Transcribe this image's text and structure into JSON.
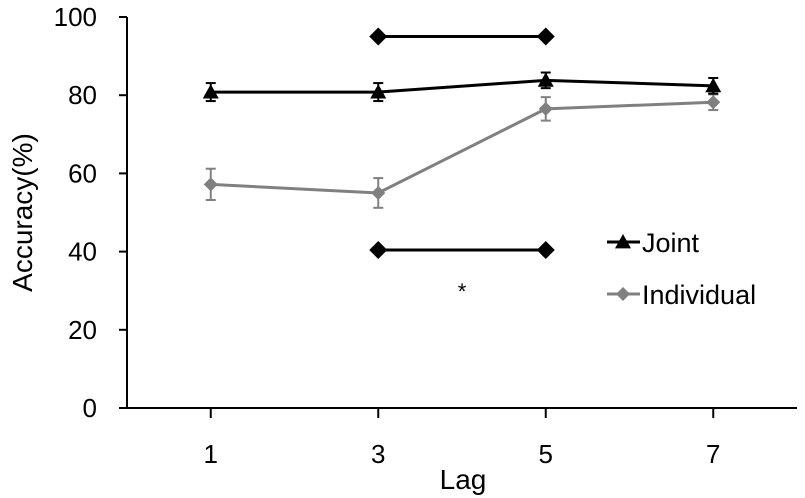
{
  "chart_data": {
    "type": "line",
    "title": "",
    "xlabel": "Lag",
    "ylabel": "Accuracy(%)",
    "x": [
      1,
      3,
      5,
      7
    ],
    "x_ticks": [
      "1",
      "3",
      "5",
      "7"
    ],
    "xlim": [
      0,
      8
    ],
    "y_ticks": [
      "0",
      "20",
      "40",
      "60",
      "80",
      "100"
    ],
    "ylim": [
      0,
      100
    ],
    "grid": false,
    "legend_position": "right",
    "series": [
      {
        "name": "Joint",
        "values": [
          80.8,
          80.8,
          83.8,
          82.4
        ],
        "errors": [
          2.3,
          2.3,
          2.0,
          2.0
        ],
        "color": "#000000",
        "marker": "triangle"
      },
      {
        "name": "Individual",
        "values": [
          57.2,
          55.0,
          76.5,
          78.2
        ],
        "errors": [
          4.0,
          3.8,
          3.0,
          2.0
        ],
        "color": "#808080",
        "marker": "diamond"
      }
    ],
    "significance_bars": [
      {
        "x_start": 3,
        "x_end": 5,
        "y": 95.0,
        "color": "#000000",
        "marker": "diamond"
      },
      {
        "x_start": 3,
        "x_end": 5,
        "y": 40.4,
        "color": "#000000",
        "marker": "diamond"
      }
    ],
    "annotations": [
      {
        "text": "*",
        "x": 4,
        "y": 31
      }
    ]
  }
}
